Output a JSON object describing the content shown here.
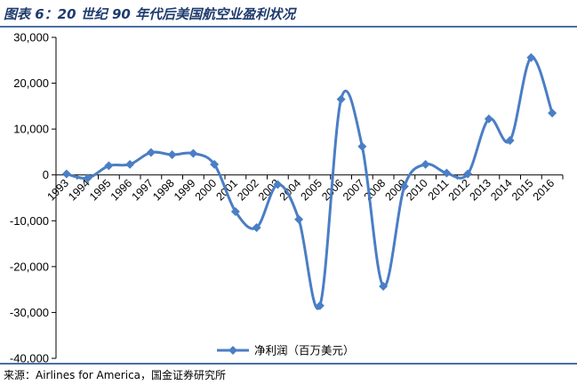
{
  "figure_title": "图表 6：20 世纪 90 年代后美国航空业盈利状况",
  "source_text": "来源：Airlines for America，国金证券研究所",
  "colors": {
    "series": "#4a7ec5",
    "axis": "#000000",
    "rule": "#4a6fa5",
    "title": "#1f3c6e"
  },
  "chart_data": {
    "type": "line",
    "title": "",
    "xlabel": "",
    "ylabel": "",
    "ylim": [
      -40000,
      30000
    ],
    "y_ticks": [
      -40000,
      -30000,
      -20000,
      -10000,
      0,
      10000,
      20000,
      30000
    ],
    "y_tick_labels": [
      "-40,000",
      "-30,000",
      "-20,000",
      "-10,000",
      "0",
      "10,000",
      "20,000",
      "30,000"
    ],
    "grid": false,
    "smooth": true,
    "legend_position": "bottom",
    "categories": [
      "1993",
      "1994",
      "1995",
      "1996",
      "1997",
      "1998",
      "1999",
      "2000",
      "2001",
      "2002",
      "2003",
      "2004",
      "2005",
      "2006",
      "2007",
      "2008",
      "2009",
      "2010",
      "2011",
      "2012",
      "2013",
      "2014",
      "2015",
      "2016"
    ],
    "series": [
      {
        "name": "净利润（百万美元）",
        "marker": "diamond",
        "values": [
          200,
          -700,
          2000,
          2300,
          4900,
          4400,
          4700,
          2300,
          -8000,
          -11500,
          -2100,
          -9700,
          -28500,
          16500,
          6200,
          -24300,
          -2500,
          2300,
          400,
          200,
          12200,
          7500,
          25600,
          13500
        ]
      }
    ]
  }
}
